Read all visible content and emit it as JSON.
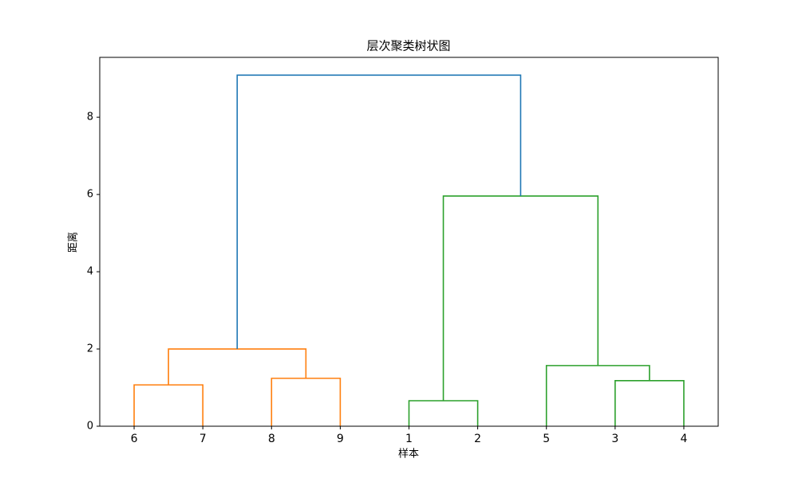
{
  "chart_data": {
    "type": "dendrogram",
    "title": "层次聚类树状图",
    "xlabel": "样本",
    "ylabel": "距离",
    "ylim": [
      0,
      9.55
    ],
    "yticks": [
      0,
      2,
      4,
      6,
      8
    ],
    "tree": {
      "height": 9.09,
      "color": "#1f77b4",
      "children": [
        {
          "height": 2.0,
          "color": "#ff7f0e",
          "children": [
            {
              "height": 1.07,
              "color": "#ff7f0e",
              "children": [
                {
                  "label": "6"
                },
                {
                  "label": "7"
                }
              ]
            },
            {
              "height": 1.24,
              "color": "#ff7f0e",
              "children": [
                {
                  "label": "8"
                },
                {
                  "label": "9"
                }
              ]
            }
          ]
        },
        {
          "height": 5.96,
          "color": "#2ca02c",
          "children": [
            {
              "height": 0.66,
              "color": "#2ca02c",
              "children": [
                {
                  "label": "1"
                },
                {
                  "label": "2"
                }
              ]
            },
            {
              "height": 1.57,
              "color": "#2ca02c",
              "children": [
                {
                  "label": "5"
                },
                {
                  "height": 1.18,
                  "color": "#2ca02c",
                  "children": [
                    {
                      "label": "3"
                    },
                    {
                      "label": "4"
                    }
                  ]
                }
              ]
            }
          ]
        }
      ]
    }
  }
}
